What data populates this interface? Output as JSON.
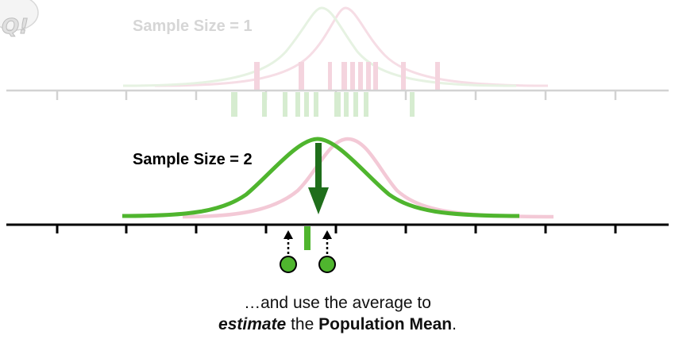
{
  "top_panel": {
    "label": "Sample Size = 1"
  },
  "bottom_panel": {
    "label": "Sample Size = 2"
  },
  "caption": {
    "line1": "…and use the average to",
    "line2_italic": "estimate",
    "line2_mid": " the ",
    "line2_bold": "Population Mean",
    "line2_end": "."
  },
  "logo": {
    "text": "Q!"
  },
  "colors": {
    "green": "#4fb52e",
    "dark_green": "#1f6e1b",
    "light_green": "#cfe9c6",
    "pink": "#f3c9d6",
    "light_pink": "#f6dbe3",
    "grey_axis": "#d2d2d2",
    "black": "#000000"
  }
}
